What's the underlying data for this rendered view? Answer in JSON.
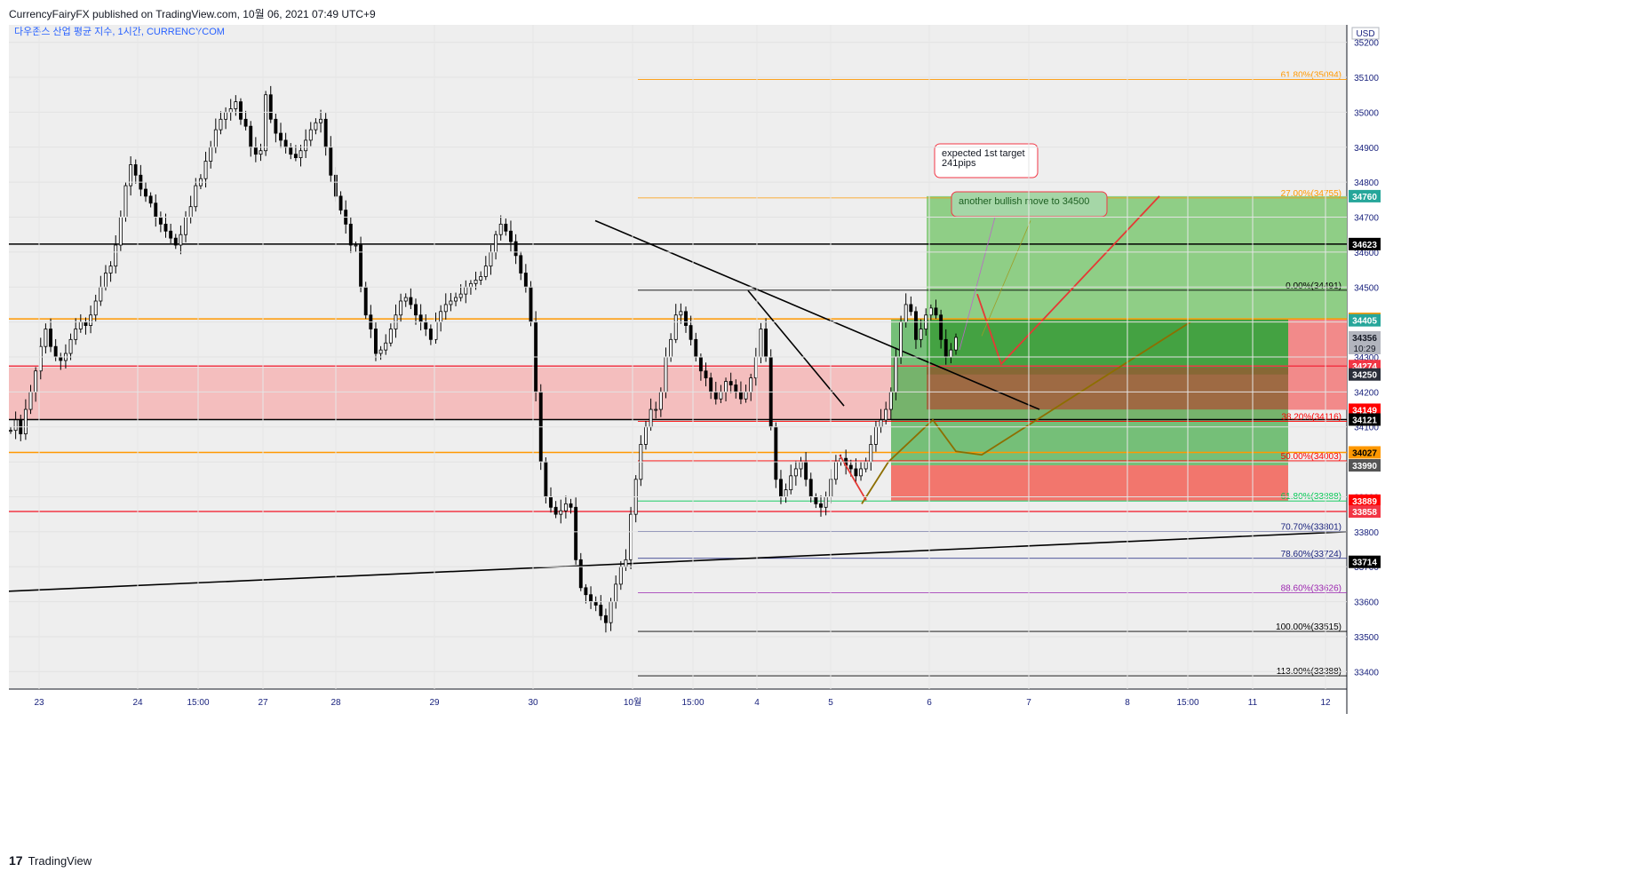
{
  "header": {
    "publish_line": "CurrencyFairyFX published on TradingView.com, 10월 06, 2021 07:49 UTC+9"
  },
  "footer": {
    "brand": "TradingView",
    "logo_icon": "tradingview-logo-icon"
  },
  "chart_data": {
    "type": "candlestick",
    "symbol_title": "다우존스 산업 평균 지수, 1시간, CURRENCYCOM",
    "currency_label": "USD",
    "ylim": [
      33350,
      35250
    ],
    "y_ticks": [
      35200,
      35100,
      35000,
      34900,
      34800,
      34700,
      34600,
      34500,
      34400,
      34300,
      34200,
      34100,
      34000,
      33900,
      33800,
      33700,
      33600,
      33500,
      33400
    ],
    "x_ticks": [
      "23",
      "24",
      "15:00",
      "27",
      "28",
      "29",
      "30",
      "10월",
      "15:00",
      "4",
      "5",
      "6",
      "7",
      "8",
      "15:00",
      "11",
      "12"
    ],
    "series_path": [
      [
        34090,
        34120,
        34080,
        34150,
        34200,
        34260,
        34330,
        34380,
        34330,
        34300,
        34290,
        34310,
        34350,
        34380,
        34400,
        34390,
        34420,
        34460,
        34500,
        34540,
        34560,
        34620,
        34700,
        34790,
        34850,
        34820,
        34780,
        34760,
        34740,
        34700,
        34680,
        34660,
        34640,
        34620,
        34650,
        34700,
        34730,
        34790,
        34810,
        34860,
        34900,
        34950,
        34980,
        35000,
        35010,
        35030,
        34980,
        34960,
        34900,
        34880,
        34890,
        35050,
        34980,
        34940,
        34920,
        34900,
        34880,
        34870,
        34890,
        34920,
        34950,
        34970,
        34980,
        34900,
        34820,
        34760,
        34720,
        34680,
        34620
      ],
      [
        34620,
        34500,
        34420,
        34380,
        34310,
        34320,
        34340,
        34380,
        34420,
        34460,
        34470,
        34450,
        34420,
        34400,
        34380,
        34350,
        34400,
        34430,
        34450,
        34460,
        34470,
        34480,
        34500,
        34510,
        34520,
        34530,
        34560,
        34600,
        34650,
        34680,
        34660,
        34630,
        34590,
        34540,
        34500,
        34400,
        34200,
        34000,
        33900,
        33870,
        33850,
        33860,
        33880,
        33870,
        33720,
        33640,
        33620,
        33600,
        33590,
        33560,
        33540,
        33600,
        33650,
        33700,
        33720,
        33850,
        33950,
        34050,
        34100,
        34150
      ],
      [
        34150,
        34200,
        34300,
        34350,
        34420,
        34430,
        34390,
        34350,
        34300,
        34260,
        34240,
        34200,
        34180,
        34200,
        34230,
        34220,
        34200,
        34180,
        34200,
        34240,
        34300,
        34380,
        34300,
        34100,
        33950,
        33900,
        33920,
        33960,
        33980,
        34000,
        33950,
        33900,
        33880,
        33870,
        33900,
        33950,
        34000,
        34010,
        33990,
        33980,
        33960,
        33980,
        34000,
        34050,
        34100,
        34120,
        34150,
        34200,
        34300,
        34400,
        34450,
        34430,
        34350,
        34380,
        34420,
        34440,
        34420,
        34350,
        34300,
        34320,
        34356
      ]
    ],
    "price_labels": [
      {
        "value": 34760,
        "text": "34760",
        "bg": "#26a69a",
        "fg": "#ffffff"
      },
      {
        "value": 34623,
        "text": "34623",
        "bg": "#000000",
        "fg": "#ffffff"
      },
      {
        "value": 34409,
        "text": "34409",
        "bg": "#ff9800",
        "fg": "#000000"
      },
      {
        "value": 34405,
        "text": "34405",
        "bg": "#26a69a",
        "fg": "#ffffff"
      },
      {
        "value": 34356,
        "text": "34356",
        "sub": "10:29",
        "bg": "#b2b5be",
        "fg": "#131722"
      },
      {
        "value": 34274,
        "text": "34274",
        "bg": "#f23645",
        "fg": "#ffffff"
      },
      {
        "value": 34250,
        "text": "34250",
        "bg": "#2a2e39",
        "fg": "#ffffff"
      },
      {
        "value": 34149,
        "text": "34149",
        "bg": "#ff0000",
        "fg": "#ffffff"
      },
      {
        "value": 34121,
        "text": "34121",
        "bg": "#000000",
        "fg": "#ffffff"
      },
      {
        "value": 34027,
        "text": "34027",
        "bg": "#ff9800",
        "fg": "#000000"
      },
      {
        "value": 33990,
        "text": "33990",
        "bg": "#555555",
        "fg": "#ffffff"
      },
      {
        "value": 33889,
        "text": "33889",
        "bg": "#ff0000",
        "fg": "#ffffff"
      },
      {
        "value": 33858,
        "text": "33858",
        "bg": "#f23645",
        "fg": "#ffffff"
      },
      {
        "value": 33714,
        "text": "33714",
        "bg": "#000000",
        "fg": "#ffffff"
      }
    ],
    "horizontal_levels": [
      {
        "value": 34623,
        "color": "#000000",
        "width": 1.5
      },
      {
        "value": 34409,
        "color": "#ff9800",
        "width": 1.5
      },
      {
        "value": 34274,
        "color": "#f23645",
        "width": 1.5
      },
      {
        "value": 34121,
        "color": "#000000",
        "width": 1.5
      },
      {
        "value": 34027,
        "color": "#ff9800",
        "width": 1.5
      },
      {
        "value": 33858,
        "color": "#f23645",
        "width": 1.5
      }
    ],
    "fib_levels": [
      {
        "value": 35094,
        "text": "61.80%(35094)",
        "color": "#ff9800"
      },
      {
        "value": 34755,
        "text": "27.00%(34755)",
        "color": "#ff9800"
      },
      {
        "value": 34491,
        "text": "0.00%(34491)",
        "color": "#000000"
      },
      {
        "value": 34116,
        "text": "38.20%(34116)",
        "color": "#ff0000"
      },
      {
        "value": 34003,
        "text": "50.00%(34003)",
        "color": "#ff0000"
      },
      {
        "value": 33888,
        "text": "61.80%(33888)",
        "color": "#00c853"
      },
      {
        "value": 33801,
        "text": "70.70%(33801)",
        "color": "#1a237e"
      },
      {
        "value": 33724,
        "text": "78.60%(33724)",
        "color": "#1a237e"
      },
      {
        "value": 33626,
        "text": "88.60%(33626)",
        "color": "#9c27b0"
      },
      {
        "value": 33515,
        "text": "100.00%(33515)",
        "color": "#000000"
      },
      {
        "value": 33388,
        "text": "113.00%(33388)",
        "color": "#000000"
      }
    ],
    "annotations": [
      {
        "text_lines": [
          "expected 1st target",
          "241pips"
        ],
        "color": "#131722",
        "border": "#f23645"
      },
      {
        "text_lines": [
          "another bullish move to 34500"
        ],
        "color": "#1b5e20",
        "border": "#f23645"
      }
    ],
    "zones": {
      "resistance_band": [
        34120,
        34270
      ],
      "long_position_1": {
        "entry": 34409,
        "target": 34760,
        "stop": 34149
      },
      "long_position_2": {
        "entry": 33990,
        "target": 34409,
        "stop": 33889
      }
    },
    "colors": {
      "up": "#26a69a",
      "down": "#ef5350",
      "candle": "#000000",
      "grid": "#e0e3eb",
      "background": "#eeeeee",
      "axis_text": "#1a237e",
      "title_text": "#2962ff"
    }
  }
}
